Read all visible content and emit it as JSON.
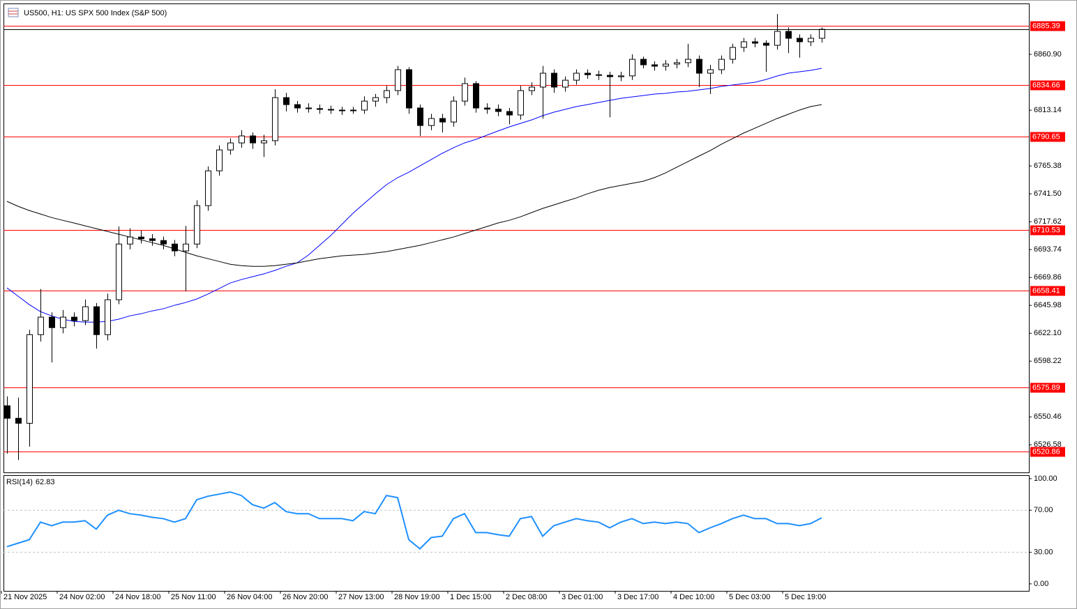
{
  "chart_data": [
    {
      "type": "candlestick",
      "title": "US500, H1:  US SPX 500 Index (S&P 500)",
      "categories": [
        "21 Nov 2025",
        null,
        null,
        null,
        null,
        "24 Nov 02:00",
        null,
        null,
        null,
        null,
        "24 Nov 18:00",
        null,
        null,
        null,
        null,
        "25 Nov 11:00",
        null,
        null,
        null,
        null,
        "26 Nov 04:00",
        null,
        null,
        null,
        null,
        "26 Nov 20:00",
        null,
        null,
        null,
        null,
        "27 Nov 13:00",
        null,
        null,
        null,
        null,
        "28 Nov 19:00",
        null,
        null,
        null,
        null,
        "1 Dec 15:00",
        null,
        null,
        null,
        null,
        "2 Dec 08:00",
        null,
        null,
        null,
        null,
        "3 Dec 01:00",
        null,
        null,
        null,
        null,
        "3 Dec 17:00",
        null,
        null,
        null,
        null,
        "4 Dec 10:00",
        null,
        null,
        null,
        null,
        "5 Dec 03:00",
        null,
        null,
        null,
        null,
        "5 Dec 19:00",
        null,
        null,
        null
      ],
      "open": [
        6560,
        6549.3,
        6545,
        6620.9,
        6635.9,
        6626.9,
        6635.9,
        6632.9,
        6644.8,
        6620.9,
        6650.8,
        6698.5,
        6704.5,
        6703,
        6701.5,
        6698.5,
        6692.6,
        6698.5,
        6731.4,
        6761.2,
        6779.1,
        6785.1,
        6791.1,
        6785.1,
        6787,
        6823.9,
        6817.9,
        6815,
        6814.5,
        6813.8,
        6813.2,
        6812.8,
        6813.2,
        6820.9,
        6823.9,
        6829.9,
        6847.8,
        6815,
        6800,
        6806,
        6803,
        6820.9,
        6835.9,
        6815,
        6814,
        6812,
        6809,
        6829.9,
        6832.9,
        6844.8,
        6832.9,
        6838.8,
        6844.8,
        6843.5,
        6843,
        6841.8,
        6842.5,
        6856.7,
        6852,
        6850.8,
        6852.6,
        6853.8,
        6856.7,
        6844.8,
        6847.8,
        6856.7,
        6866.9,
        6871.7,
        6870.5,
        6868.7,
        6880.6,
        6874.7,
        6871.7,
        6874.7
      ],
      "high": [
        6568,
        6567,
        6625,
        6660,
        6640,
        6642,
        6640,
        6651,
        6648,
        6656,
        6713.5,
        6712,
        6710,
        6707,
        6705,
        6702,
        6714,
        6736,
        6765,
        6783,
        6789,
        6796,
        6794,
        6792,
        6831,
        6828,
        6821,
        6819,
        6818,
        6817,
        6816,
        6816,
        6825,
        6827,
        6834,
        6851,
        6850,
        6818,
        6810,
        6810,
        6825,
        6841,
        6838,
        6819,
        6818,
        6815,
        6834,
        6837,
        6851,
        6848,
        6842,
        6848,
        6848,
        6847,
        6846,
        6846,
        6861,
        6859,
        6855,
        6856,
        6857,
        6870,
        6860,
        6852,
        6860,
        6870,
        6875,
        6875,
        6873,
        6895.5,
        6884,
        6878,
        6878,
        6884
      ],
      "low": [
        6519,
        6513.5,
        6525,
        6615,
        6597,
        6622,
        6628,
        6629,
        6609,
        6616,
        6647,
        6694,
        6699,
        6697,
        6694,
        6688,
        6658,
        6695,
        6727,
        6757,
        6775,
        6781,
        6780,
        6773,
        6783,
        6812,
        6811,
        6811,
        6810,
        6810,
        6809,
        6810,
        6810,
        6816,
        6819,
        6826,
        6810,
        6791,
        6796,
        6794,
        6799,
        6817,
        6811,
        6810,
        6808,
        6801,
        6805,
        6826,
        6806,
        6828,
        6829,
        6835,
        6840,
        6839,
        6807,
        6838,
        6839,
        6849,
        6847,
        6847,
        6849,
        6850,
        6833,
        6827,
        6844,
        6853,
        6863,
        6867,
        6846,
        6865,
        6862,
        6858,
        6868,
        6871
      ],
      "close": [
        6549.3,
        6545,
        6620.9,
        6635.9,
        6626.9,
        6635.9,
        6632.9,
        6644.8,
        6620.9,
        6650.8,
        6698.5,
        6704.5,
        6703,
        6701.5,
        6698.5,
        6692.6,
        6698.5,
        6731.4,
        6761.2,
        6779.1,
        6785.1,
        6791.1,
        6785.1,
        6787,
        6823.9,
        6817.9,
        6815,
        6814.5,
        6813.8,
        6813.2,
        6812.8,
        6813.2,
        6820.9,
        6823.9,
        6829.9,
        6847.8,
        6815,
        6800,
        6806,
        6803,
        6820.9,
        6835.9,
        6815,
        6814,
        6812,
        6809,
        6829.9,
        6832.9,
        6844.8,
        6832.9,
        6838.8,
        6844.8,
        6843.5,
        6843,
        6841.8,
        6842.5,
        6856.7,
        6852,
        6850.8,
        6852.6,
        6853.8,
        6856.7,
        6844.8,
        6847.8,
        6856.7,
        6866.9,
        6871.7,
        6870.5,
        6868.7,
        6880.6,
        6874.7,
        6871.7,
        6874.7,
        6882.4
      ],
      "up_color": "#ffffff",
      "down_color": "#000000",
      "overlays": [
        {
          "color": "#0000ff",
          "values": [
            6660.9,
            6653.8,
            6646.6,
            6640.6,
            6637.0,
            6634.1,
            6632.3,
            6631.7,
            6631.7,
            6632.3,
            6634.1,
            6637.0,
            6638.8,
            6641.2,
            6643.0,
            6646.0,
            6648.4,
            6651.4,
            6655.6,
            6660.3,
            6665.1,
            6668.1,
            6670.5,
            6672.9,
            6675.9,
            6679.4,
            6682.4,
            6689.0,
            6697.4,
            6705.7,
            6715.3,
            6724.8,
            6733.2,
            6741.5,
            6749.3,
            6755.3,
            6760.0,
            6765.4,
            6770.8,
            6776.2,
            6780.9,
            6785.1,
            6788.1,
            6791.7,
            6795.3,
            6798.8,
            6801.8,
            6804.8,
            6808.4,
            6811.4,
            6813.8,
            6816.2,
            6817.9,
            6819.7,
            6821.5,
            6823.3,
            6824.5,
            6825.7,
            6826.9,
            6827.5,
            6828.7,
            6829.3,
            6830.5,
            6831.7,
            6833.5,
            6834.7,
            6835.9,
            6837.0,
            6839.4,
            6842.4,
            6844.8,
            6846.0,
            6847.2,
            6849.0
          ]
        },
        {
          "color": "#000000",
          "values": [
            6735.0,
            6730.8,
            6727.2,
            6724.2,
            6721.2,
            6718.8,
            6716.5,
            6714.1,
            6711.7,
            6709.3,
            6706.9,
            6704.5,
            6702.1,
            6699.7,
            6697.4,
            6694.4,
            6691.4,
            6688.4,
            6686.0,
            6683.6,
            6681.2,
            6680.0,
            6679.4,
            6679.4,
            6680.0,
            6681.2,
            6682.4,
            6684.2,
            6686.0,
            6687.2,
            6688.4,
            6689.0,
            6689.6,
            6690.8,
            6692.0,
            6693.8,
            6695.6,
            6697.4,
            6699.7,
            6702.1,
            6704.5,
            6707.5,
            6710.5,
            6713.5,
            6716.5,
            6718.8,
            6721.8,
            6725.4,
            6729.0,
            6732.0,
            6735.0,
            6737.9,
            6741.5,
            6744.5,
            6746.9,
            6748.7,
            6750.5,
            6752.3,
            6755.3,
            6759.4,
            6764.2,
            6769.0,
            6773.8,
            6778.5,
            6783.9,
            6788.7,
            6793.5,
            6797.6,
            6801.8,
            6806.0,
            6809.6,
            6813.2,
            6816.2,
            6817.9
          ]
        }
      ],
      "levels": {
        "color": "#ff0000",
        "values": [
          6885.39,
          6834.66,
          6790.65,
          6710.53,
          6658.41,
          6575.89,
          6520.86
        ]
      },
      "ylim": [
        6502.9,
        6904.5
      ],
      "yticks": [
        {
          "value": 6860.9,
          "label": "6860.90"
        },
        6813.14,
        6765.38,
        {
          "value": 6741.5,
          "label": "6741.50"
        },
        6717.62,
        6693.74,
        6669.86,
        6645.98,
        {
          "value": 6622.1,
          "label": "6622.10"
        },
        6598.22,
        6550.46,
        6526.58
      ]
    },
    {
      "type": "line",
      "title": "RSI(14)",
      "color": "#1e90ff",
      "values": [
        35.3,
        38.7,
        42,
        58.7,
        55.3,
        58.7,
        58.7,
        60,
        52,
        65.3,
        70,
        66.7,
        65.3,
        63.3,
        62,
        58.7,
        62,
        80,
        83.3,
        85.3,
        87.3,
        84,
        75.3,
        72,
        77.3,
        68.7,
        66.7,
        66.7,
        62,
        62,
        62,
        60,
        68.7,
        66.7,
        84,
        82,
        42,
        33.3,
        44,
        45.3,
        62,
        66.7,
        48.7,
        48.7,
        46.7,
        45.3,
        62,
        64,
        45.3,
        55.3,
        58.7,
        62,
        60,
        58.7,
        53.3,
        58.7,
        62,
        57.3,
        58.7,
        57.3,
        58.7,
        57.3,
        48.7,
        53.3,
        57.3,
        62,
        65.3,
        62,
        62,
        57.3,
        57.3,
        55.3,
        57.3,
        62.83
      ],
      "ylim": [
        -6.7,
        103.3
      ],
      "yticks": [
        {
          "value": 100,
          "label": "100.00"
        },
        {
          "value": 70,
          "label": "70.00"
        },
        {
          "value": 30,
          "label": "30.00"
        },
        {
          "value": 0,
          "label": "0.00"
        }
      ],
      "levels": [
        70,
        30
      ]
    }
  ]
}
